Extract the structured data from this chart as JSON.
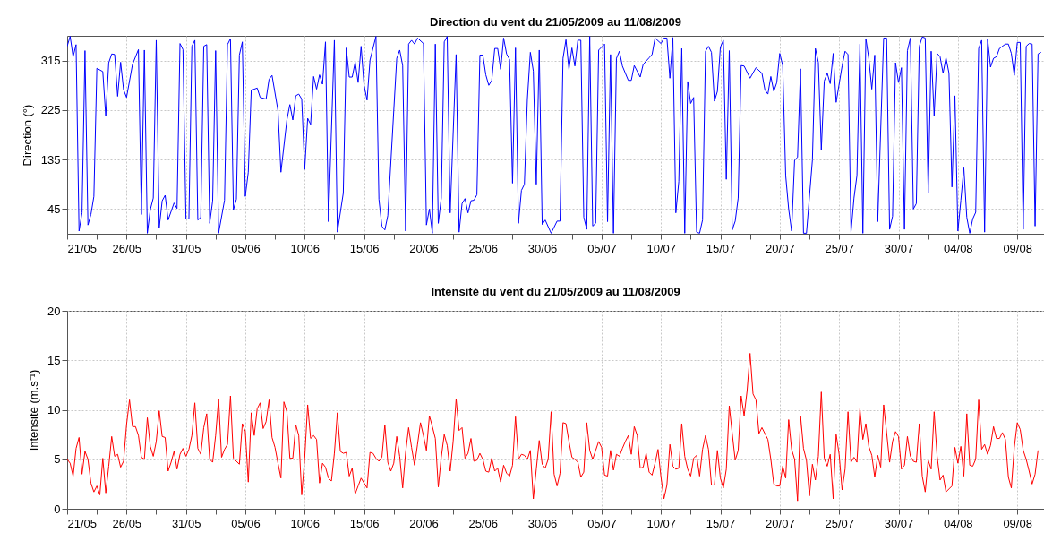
{
  "chart_data": [
    {
      "type": "line",
      "title": "Direction du vent du 21/05/2009 au 11/08/2009",
      "ylabel": "Direction (°)",
      "xlim": [
        "2009-05-21",
        "2009-08-11T06:00"
      ],
      "ylim": [
        0,
        360
      ],
      "yticks": [
        45,
        135,
        225,
        315
      ],
      "grid": true,
      "xticks": [
        {
          "value": "2009-05-21",
          "label": "21/05"
        },
        {
          "value": "2009-05-23T12:00",
          "label": null
        },
        {
          "value": "2009-05-26",
          "label": "26/05"
        },
        {
          "value": "2009-05-28T12:00",
          "label": null
        },
        {
          "value": "2009-05-31",
          "label": "31/05"
        },
        {
          "value": "2009-06-02T12:00",
          "label": null
        },
        {
          "value": "2009-06-05",
          "label": "05/06"
        },
        {
          "value": "2009-06-07T12:00",
          "label": null
        },
        {
          "value": "2009-06-10",
          "label": "10/06"
        },
        {
          "value": "2009-06-12T12:00",
          "label": null
        },
        {
          "value": "2009-06-15",
          "label": "15/06"
        },
        {
          "value": "2009-06-17T12:00",
          "label": null
        },
        {
          "value": "2009-06-20",
          "label": "20/06"
        },
        {
          "value": "2009-06-22T12:00",
          "label": null
        },
        {
          "value": "2009-06-25",
          "label": "25/06"
        },
        {
          "value": "2009-06-27T12:00",
          "label": null
        },
        {
          "value": "2009-06-30",
          "label": "30/06"
        },
        {
          "value": "2009-07-02T12:00",
          "label": null
        },
        {
          "value": "2009-07-05",
          "label": "05/07"
        },
        {
          "value": "2009-07-07T12:00",
          "label": null
        },
        {
          "value": "2009-07-10",
          "label": "10/07"
        },
        {
          "value": "2009-07-12T12:00",
          "label": null
        },
        {
          "value": "2009-07-15",
          "label": "15/07"
        },
        {
          "value": "2009-07-17T12:00",
          "label": null
        },
        {
          "value": "2009-07-20",
          "label": "20/07"
        },
        {
          "value": "2009-07-22T12:00",
          "label": null
        },
        {
          "value": "2009-07-25",
          "label": "25/07"
        },
        {
          "value": "2009-07-27T12:00",
          "label": null
        },
        {
          "value": "2009-07-30",
          "label": "30/07"
        },
        {
          "value": "2009-08-01T12:00",
          "label": null
        },
        {
          "value": "2009-08-04",
          "label": "04/08"
        },
        {
          "value": "2009-08-06T12:00",
          "label": null
        },
        {
          "value": "2009-08-09",
          "label": "09/08"
        }
      ],
      "x": [
        "2009-05-21T00:00",
        "2009-05-21T06:00",
        "2009-05-21T12:00",
        "2009-05-21T18:00",
        "2009-05-22T00:00",
        "2009-05-22T06:00",
        "2009-05-22T12:00",
        "2009-05-22T18:00",
        "2009-05-23T00:00",
        "2009-05-23T06:00",
        "2009-05-23T12:00",
        "2009-05-24T00:00",
        "2009-05-24T06:00",
        "2009-05-24T12:00",
        "2009-05-24T18:00",
        "2009-05-25T00:00",
        "2009-05-25T06:00",
        "2009-05-25T12:00",
        "2009-05-25T18:00",
        "2009-05-26T00:00",
        "2009-05-26T12:00",
        "2009-05-27T00:00",
        "2009-05-27T06:00",
        "2009-05-27T12:00",
        "2009-05-27T18:00",
        "2009-05-28T00:00",
        "2009-05-28T06:00",
        "2009-05-28T12:00",
        "2009-05-28T18:00",
        "2009-05-29T00:00",
        "2009-05-29T06:00",
        "2009-05-29T12:00",
        "2009-05-30T00:00",
        "2009-05-30T06:00",
        "2009-05-30T12:00",
        "2009-05-30T18:00",
        "2009-05-31T00:00",
        "2009-05-31T06:00",
        "2009-05-31T12:00",
        "2009-05-31T18:00",
        "2009-06-01T00:00",
        "2009-06-01T06:00",
        "2009-06-01T12:00",
        "2009-06-01T18:00",
        "2009-06-02T00:00",
        "2009-06-02T06:00",
        "2009-06-02T12:00",
        "2009-06-02T18:00",
        "2009-06-03T06:00",
        "2009-06-03T12:00",
        "2009-06-03T18:00",
        "2009-06-04T00:00",
        "2009-06-04T06:00",
        "2009-06-04T12:00",
        "2009-06-04T18:00",
        "2009-06-05T00:00",
        "2009-06-05T06:00",
        "2009-06-05T12:00",
        "2009-06-06T00:00",
        "2009-06-06T06:00",
        "2009-06-06T18:00",
        "2009-06-07T00:00",
        "2009-06-07T06:00",
        "2009-06-07T18:00",
        "2009-06-08T00:00",
        "2009-06-08T12:00",
        "2009-06-08T18:00",
        "2009-06-09T00:00",
        "2009-06-09T06:00",
        "2009-06-09T12:00",
        "2009-06-09T18:00",
        "2009-06-10T00:00",
        "2009-06-10T06:00",
        "2009-06-10T12:00",
        "2009-06-10T18:00",
        "2009-06-11T00:00",
        "2009-06-11T06:00",
        "2009-06-11T12:00",
        "2009-06-11T18:00",
        "2009-06-12T00:00",
        "2009-06-12T12:00",
        "2009-06-12T18:00",
        "2009-06-13T06:00",
        "2009-06-13T12:00",
        "2009-06-13T18:00",
        "2009-06-14T00:00",
        "2009-06-14T06:00",
        "2009-06-14T12:00",
        "2009-06-14T18:00",
        "2009-06-15T00:00",
        "2009-06-15T06:00",
        "2009-06-15T12:00",
        "2009-06-16T00:00",
        "2009-06-16T06:00",
        "2009-06-16T12:00",
        "2009-06-16T18:00",
        "2009-06-17T00:00",
        "2009-06-17T18:00",
        "2009-06-18T00:00",
        "2009-06-18T06:00",
        "2009-06-18T12:00",
        "2009-06-18T18:00",
        "2009-06-19T00:00",
        "2009-06-19T06:00",
        "2009-06-19T12:00",
        "2009-06-20T00:00",
        "2009-06-20T06:00",
        "2009-06-20T12:00",
        "2009-06-20T18:00",
        "2009-06-21T00:00",
        "2009-06-21T06:00",
        "2009-06-21T12:00",
        "2009-06-21T18:00",
        "2009-06-22T00:00",
        "2009-06-22T06:00",
        "2009-06-22T18:00",
        "2009-06-23T00:00",
        "2009-06-23T06:00",
        "2009-06-23T12:00",
        "2009-06-23T18:00",
        "2009-06-24T00:00",
        "2009-06-24T06:00",
        "2009-06-24T12:00",
        "2009-06-24T18:00",
        "2009-06-25T00:00",
        "2009-06-25T06:00",
        "2009-06-25T12:00",
        "2009-06-25T18:00",
        "2009-06-26T00:00",
        "2009-06-26T06:00",
        "2009-06-26T12:00",
        "2009-06-26T18:00",
        "2009-06-27T00:00",
        "2009-06-27T06:00",
        "2009-06-27T12:00",
        "2009-06-27T18:00",
        "2009-06-28T00:00",
        "2009-06-28T06:00",
        "2009-06-28T12:00",
        "2009-06-28T18:00",
        "2009-06-29T00:00",
        "2009-06-29T06:00",
        "2009-06-29T12:00",
        "2009-06-29T18:00",
        "2009-06-30T00:00",
        "2009-06-30T06:00",
        "2009-06-30T18:00",
        "2009-07-01T06:00",
        "2009-07-01T12:00",
        "2009-07-01T18:00",
        "2009-07-02T00:00",
        "2009-07-02T06:00",
        "2009-07-02T12:00",
        "2009-07-02T18:00",
        "2009-07-03T00:00",
        "2009-07-03T06:00",
        "2009-07-03T12:00",
        "2009-07-03T18:00",
        "2009-07-04T00:00",
        "2009-07-04T06:00",
        "2009-07-04T12:00",
        "2009-07-04T18:00",
        "2009-07-05T06:00",
        "2009-07-05T12:00",
        "2009-07-05T18:00",
        "2009-07-06T00:00",
        "2009-07-06T06:00",
        "2009-07-06T12:00",
        "2009-07-06T18:00",
        "2009-07-07T06:00",
        "2009-07-07T12:00",
        "2009-07-07T18:00",
        "2009-07-08T06:00",
        "2009-07-08T12:00",
        "2009-07-09T00:00",
        "2009-07-09T06:00",
        "2009-07-09T12:00",
        "2009-07-10T00:00",
        "2009-07-10T06:00",
        "2009-07-10T12:00",
        "2009-07-10T18:00",
        "2009-07-11T00:00",
        "2009-07-11T06:00",
        "2009-07-11T12:00",
        "2009-07-11T18:00",
        "2009-07-12T00:00",
        "2009-07-12T06:00",
        "2009-07-12T12:00",
        "2009-07-12T18:00",
        "2009-07-13T00:00",
        "2009-07-13T06:00",
        "2009-07-13T12:00",
        "2009-07-13T18:00",
        "2009-07-14T00:00",
        "2009-07-14T06:00",
        "2009-07-14T12:00",
        "2009-07-14T18:00",
        "2009-07-15T00:00",
        "2009-07-15T06:00",
        "2009-07-15T12:00",
        "2009-07-15T18:00",
        "2009-07-16T00:00",
        "2009-07-16T06:00",
        "2009-07-16T12:00",
        "2009-07-16T18:00",
        "2009-07-17T00:00",
        "2009-07-17T12:00",
        "2009-07-18T00:00",
        "2009-07-18T12:00",
        "2009-07-18T18:00",
        "2009-07-19T00:00",
        "2009-07-19T06:00",
        "2009-07-19T12:00",
        "2009-07-19T18:00",
        "2009-07-20T00:00",
        "2009-07-20T06:00",
        "2009-07-20T12:00",
        "2009-07-20T18:00",
        "2009-07-21T00:00",
        "2009-07-21T06:00",
        "2009-07-21T12:00",
        "2009-07-21T18:00",
        "2009-07-22T00:00",
        "2009-07-22T06:00",
        "2009-07-22T18:00",
        "2009-07-23T00:00",
        "2009-07-23T06:00",
        "2009-07-23T12:00",
        "2009-07-23T18:00",
        "2009-07-24T00:00",
        "2009-07-24T06:00",
        "2009-07-24T12:00",
        "2009-07-24T18:00",
        "2009-07-25T06:00",
        "2009-07-25T12:00",
        "2009-07-25T18:00",
        "2009-07-26T00:00",
        "2009-07-26T06:00",
        "2009-07-26T12:00",
        "2009-07-26T18:00",
        "2009-07-27T00:00",
        "2009-07-27T06:00",
        "2009-07-27T12:00",
        "2009-07-27T18:00",
        "2009-07-28T00:00",
        "2009-07-28T06:00",
        "2009-07-28T18:00",
        "2009-07-29T00:00",
        "2009-07-29T06:00",
        "2009-07-29T12:00",
        "2009-07-29T18:00",
        "2009-07-30T00:00",
        "2009-07-30T06:00",
        "2009-07-30T12:00",
        "2009-07-30T18:00",
        "2009-07-31T00:00",
        "2009-07-31T06:00",
        "2009-07-31T12:00",
        "2009-07-31T18:00",
        "2009-08-01T00:00",
        "2009-08-01T06:00",
        "2009-08-01T12:00",
        "2009-08-01T18:00",
        "2009-08-02T00:00",
        "2009-08-02T06:00",
        "2009-08-02T12:00",
        "2009-08-02T18:00",
        "2009-08-03T00:00",
        "2009-08-03T06:00",
        "2009-08-03T12:00",
        "2009-08-03T18:00",
        "2009-08-04T00:00",
        "2009-08-04T06:00",
        "2009-08-04T12:00",
        "2009-08-04T18:00",
        "2009-08-05T00:00",
        "2009-08-05T06:00",
        "2009-08-05T12:00",
        "2009-08-05T18:00",
        "2009-08-06T00:00",
        "2009-08-06T06:00",
        "2009-08-06T12:00",
        "2009-08-06T18:00",
        "2009-08-07T00:00",
        "2009-08-07T06:00",
        "2009-08-07T12:00",
        "2009-08-08T00:00",
        "2009-08-08T06:00",
        "2009-08-08T12:00",
        "2009-08-08T18:00",
        "2009-08-09T00:00",
        "2009-08-09T06:00",
        "2009-08-09T12:00",
        "2009-08-09T18:00",
        "2009-08-10T00:00",
        "2009-08-10T06:00",
        "2009-08-10T12:00",
        "2009-08-10T18:00",
        "2009-08-11T00:00"
      ],
      "series": [
        {
          "color": "#0000ff",
          "values": [
            341,
            359,
            322,
            344,
            5,
            38,
            333,
            16,
            35,
            68,
            301,
            295,
            214,
            311,
            327,
            326,
            250,
            312,
            262,
            248,
            308,
            335,
            35,
            334,
            1,
            44,
            65,
            352,
            11,
            60,
            70,
            25,
            56,
            46,
            346,
            335,
            27,
            27,
            341,
            352,
            25,
            30,
            341,
            344,
            19,
            60,
            333,
            1,
            61,
            344,
            355,
            44,
            63,
            325,
            349,
            68,
            112,
            261,
            265,
            248,
            245,
            281,
            288,
            224,
            112,
            207,
            235,
            207,
            251,
            254,
            245,
            117,
            210,
            199,
            286,
            263,
            289,
            272,
            349,
            22,
            352,
            3,
            74,
            338,
            285,
            285,
            312,
            275,
            341,
            270,
            243,
            316,
            359,
            63,
            14,
            7,
            33,
            319,
            334,
            306,
            5,
            345,
            352,
            345,
            356,
            346,
            16,
            45,
            1,
            345,
            19,
            65,
            349,
            359,
            38,
            326,
            3,
            55,
            64,
            38,
            60,
            61,
            71,
            325,
            325,
            289,
            270,
            279,
            337,
            337,
            299,
            356,
            327,
            317,
            92,
            338,
            19,
            79,
            90,
            245,
            330,
            296,
            90,
            334,
            17,
            25,
            1,
            23,
            23,
            319,
            353,
            299,
            338,
            305,
            352,
            352,
            30,
            8,
            359,
            14,
            19,
            334,
            345,
            22,
            326,
            1,
            319,
            332,
            305,
            279,
            279,
            306,
            285,
            308,
            320,
            326,
            356,
            346,
            356,
            356,
            283,
            357,
            38,
            95,
            337,
            1,
            277,
            237,
            248,
            3,
            1,
            25,
            332,
            341,
            330,
            241,
            259,
            339,
            352,
            99,
            333,
            7,
            23,
            65,
            306,
            305,
            283,
            302,
            292,
            262,
            254,
            286,
            259,
            275,
            328,
            306,
            106,
            45,
            5,
            134,
            139,
            300,
            1,
            1,
            134,
            337,
            312,
            153,
            278,
            292,
            273,
            328,
            239,
            305,
            332,
            326,
            3,
            65,
            106,
            345,
            1,
            355,
            319,
            263,
            325,
            22,
            356,
            356,
            8,
            32,
            311,
            275,
            302,
            8,
            333,
            356,
            45,
            55,
            341,
            358,
            356,
            74,
            332,
            215,
            328,
            322,
            292,
            320,
            292,
            85,
            251,
            5,
            61,
            120,
            30,
            1,
            27,
            39,
            337,
            352,
            3,
            355,
            303,
            319,
            322,
            337,
            345,
            345,
            328,
            288,
            348,
            348,
            8,
            341,
            346,
            345,
            14,
            327,
            330
          ]
        }
      ]
    },
    {
      "type": "line",
      "title": "Intensité du vent du 21/05/2009 au 11/08/2009",
      "ylabel": "Intensité (m.s⁻¹)",
      "xlim": [
        "2009-05-21",
        "2009-08-11T06:00"
      ],
      "ylim": [
        0,
        20
      ],
      "yticks": [
        0,
        5,
        10,
        15,
        20
      ],
      "grid": true,
      "xticks": [
        {
          "value": "2009-05-21",
          "label": "21/05"
        },
        {
          "value": "2009-05-23T12:00",
          "label": null
        },
        {
          "value": "2009-05-26",
          "label": "26/05"
        },
        {
          "value": "2009-05-28T12:00",
          "label": null
        },
        {
          "value": "2009-05-31",
          "label": "31/05"
        },
        {
          "value": "2009-06-02T12:00",
          "label": null
        },
        {
          "value": "2009-06-05",
          "label": "05/06"
        },
        {
          "value": "2009-06-07T12:00",
          "label": null
        },
        {
          "value": "2009-06-10",
          "label": "10/06"
        },
        {
          "value": "2009-06-12T12:00",
          "label": null
        },
        {
          "value": "2009-06-15",
          "label": "15/06"
        },
        {
          "value": "2009-06-17T12:00",
          "label": null
        },
        {
          "value": "2009-06-20",
          "label": "20/06"
        },
        {
          "value": "2009-06-22T12:00",
          "label": null
        },
        {
          "value": "2009-06-25",
          "label": "25/06"
        },
        {
          "value": "2009-06-27T12:00",
          "label": null
        },
        {
          "value": "2009-06-30",
          "label": "30/06"
        },
        {
          "value": "2009-07-02T12:00",
          "label": null
        },
        {
          "value": "2009-07-05",
          "label": "05/07"
        },
        {
          "value": "2009-07-07T12:00",
          "label": null
        },
        {
          "value": "2009-07-10",
          "label": "10/07"
        },
        {
          "value": "2009-07-12T12:00",
          "label": null
        },
        {
          "value": "2009-07-15",
          "label": "15/07"
        },
        {
          "value": "2009-07-17T12:00",
          "label": null
        },
        {
          "value": "2009-07-20",
          "label": "20/07"
        },
        {
          "value": "2009-07-22T12:00",
          "label": null
        },
        {
          "value": "2009-07-25",
          "label": "25/07"
        },
        {
          "value": "2009-07-27T12:00",
          "label": null
        },
        {
          "value": "2009-07-30",
          "label": "30/07"
        },
        {
          "value": "2009-08-01T12:00",
          "label": null
        },
        {
          "value": "2009-08-04",
          "label": "04/08"
        },
        {
          "value": "2009-08-06T12:00",
          "label": null
        },
        {
          "value": "2009-08-09",
          "label": "09/08"
        }
      ],
      "x": [
        "2009-05-21T00:00",
        "2009-05-21T06:00",
        "2009-05-21T12:00",
        "2009-05-21T18:00",
        "2009-05-22T00:00",
        "2009-05-22T06:00",
        "2009-05-22T12:00",
        "2009-05-22T18:00",
        "2009-05-23T00:00",
        "2009-05-23T06:00",
        "2009-05-23T12:00",
        "2009-05-23T18:00",
        "2009-05-24T00:00",
        "2009-05-24T06:00",
        "2009-05-24T12:00",
        "2009-05-24T18:00",
        "2009-05-25T00:00",
        "2009-05-25T06:00",
        "2009-05-25T12:00",
        "2009-05-25T18:00",
        "2009-05-26T00:00",
        "2009-05-26T06:00",
        "2009-05-26T12:00",
        "2009-05-26T18:00",
        "2009-05-27T00:00",
        "2009-05-27T06:00",
        "2009-05-27T12:00",
        "2009-05-27T18:00",
        "2009-05-28T00:00",
        "2009-05-28T06:00",
        "2009-05-28T12:00",
        "2009-05-28T18:00",
        "2009-05-29T00:00",
        "2009-05-29T06:00",
        "2009-05-29T12:00",
        "2009-05-29T18:00",
        "2009-05-30T00:00",
        "2009-05-30T06:00",
        "2009-05-30T12:00",
        "2009-05-30T18:00",
        "2009-05-31T00:00",
        "2009-05-31T06:00",
        "2009-05-31T12:00",
        "2009-05-31T18:00",
        "2009-06-01T00:00",
        "2009-06-01T06:00",
        "2009-06-01T12:00",
        "2009-06-01T18:00",
        "2009-06-02T00:00",
        "2009-06-02T06:00",
        "2009-06-02T12:00",
        "2009-06-02T18:00",
        "2009-06-03T00:00",
        "2009-06-03T06:00",
        "2009-06-03T12:00",
        "2009-06-03T18:00",
        "2009-06-04T00:00",
        "2009-06-04T06:00",
        "2009-06-04T12:00",
        "2009-06-04T18:00",
        "2009-06-05T00:00",
        "2009-06-05T06:00",
        "2009-06-05T12:00",
        "2009-06-05T18:00",
        "2009-06-06T00:00",
        "2009-06-06T06:00",
        "2009-06-06T12:00",
        "2009-06-06T18:00",
        "2009-06-07T00:00",
        "2009-06-07T06:00",
        "2009-06-07T12:00",
        "2009-06-07T18:00",
        "2009-06-08T00:00",
        "2009-06-08T06:00",
        "2009-06-08T12:00",
        "2009-06-08T18:00",
        "2009-06-09T00:00",
        "2009-06-09T06:00",
        "2009-06-09T12:00",
        "2009-06-09T18:00",
        "2009-06-10T00:00",
        "2009-06-10T06:00",
        "2009-06-10T12:00",
        "2009-06-10T18:00",
        "2009-06-11T00:00",
        "2009-06-11T06:00",
        "2009-06-11T12:00",
        "2009-06-11T18:00",
        "2009-06-12T00:00",
        "2009-06-12T06:00",
        "2009-06-12T12:00",
        "2009-06-12T18:00",
        "2009-06-13T00:00",
        "2009-06-13T06:00",
        "2009-06-13T12:00",
        "2009-06-13T18:00",
        "2009-06-14T00:00",
        "2009-06-14T06:00",
        "2009-06-14T12:00",
        "2009-06-14T18:00",
        "2009-06-15T00:00",
        "2009-06-15T06:00",
        "2009-06-15T12:00",
        "2009-06-15T18:00",
        "2009-06-16T00:00",
        "2009-06-16T06:00",
        "2009-06-16T12:00",
        "2009-06-16T18:00",
        "2009-06-17T00:00",
        "2009-06-17T06:00",
        "2009-06-17T12:00",
        "2009-06-17T18:00",
        "2009-06-18T00:00",
        "2009-06-18T06:00",
        "2009-06-18T12:00",
        "2009-06-18T18:00",
        "2009-06-19T00:00",
        "2009-06-19T06:00",
        "2009-06-19T12:00",
        "2009-06-19T18:00",
        "2009-06-20T00:00",
        "2009-06-20T06:00",
        "2009-06-20T12:00",
        "2009-06-20T18:00",
        "2009-06-21T00:00",
        "2009-06-21T06:00",
        "2009-06-21T12:00",
        "2009-06-21T18:00",
        "2009-06-22T00:00",
        "2009-06-22T06:00",
        "2009-06-22T12:00",
        "2009-06-22T18:00",
        "2009-06-23T00:00",
        "2009-06-23T06:00",
        "2009-06-23T12:00",
        "2009-06-23T18:00",
        "2009-06-24T00:00",
        "2009-06-24T06:00",
        "2009-06-24T12:00",
        "2009-06-24T18:00",
        "2009-06-25T00:00",
        "2009-06-25T06:00",
        "2009-06-25T12:00",
        "2009-06-25T18:00",
        "2009-06-26T00:00",
        "2009-06-26T06:00",
        "2009-06-26T12:00",
        "2009-06-26T18:00",
        "2009-06-27T00:00",
        "2009-06-27T06:00",
        "2009-06-27T12:00",
        "2009-06-27T18:00",
        "2009-06-28T00:00",
        "2009-06-28T06:00",
        "2009-06-28T12:00",
        "2009-06-28T18:00",
        "2009-06-29T00:00",
        "2009-06-29T06:00",
        "2009-06-29T12:00",
        "2009-06-29T18:00",
        "2009-06-30T00:00",
        "2009-06-30T06:00",
        "2009-06-30T12:00",
        "2009-06-30T18:00",
        "2009-07-01T00:00",
        "2009-07-01T06:00",
        "2009-07-01T12:00",
        "2009-07-01T18:00",
        "2009-07-02T00:00",
        "2009-07-02T06:00",
        "2009-07-02T12:00",
        "2009-07-02T18:00",
        "2009-07-03T00:00",
        "2009-07-03T06:00",
        "2009-07-03T12:00",
        "2009-07-03T18:00",
        "2009-07-04T00:00",
        "2009-07-04T06:00",
        "2009-07-04T12:00",
        "2009-07-04T18:00",
        "2009-07-05T00:00",
        "2009-07-05T06:00",
        "2009-07-05T12:00",
        "2009-07-05T18:00",
        "2009-07-06T00:00",
        "2009-07-06T06:00",
        "2009-07-06T12:00",
        "2009-07-06T18:00",
        "2009-07-07T00:00",
        "2009-07-07T06:00",
        "2009-07-07T12:00",
        "2009-07-07T18:00",
        "2009-07-08T00:00",
        "2009-07-08T06:00",
        "2009-07-08T12:00",
        "2009-07-08T18:00",
        "2009-07-09T00:00",
        "2009-07-09T06:00",
        "2009-07-09T12:00",
        "2009-07-09T18:00",
        "2009-07-10T00:00",
        "2009-07-10T06:00",
        "2009-07-10T12:00",
        "2009-07-10T18:00",
        "2009-07-11T00:00",
        "2009-07-11T06:00",
        "2009-07-11T12:00",
        "2009-07-11T18:00",
        "2009-07-12T00:00",
        "2009-07-12T06:00",
        "2009-07-12T12:00",
        "2009-07-12T18:00",
        "2009-07-13T00:00",
        "2009-07-13T06:00",
        "2009-07-13T12:00",
        "2009-07-13T18:00",
        "2009-07-14T00:00",
        "2009-07-14T06:00",
        "2009-07-14T12:00",
        "2009-07-14T18:00",
        "2009-07-15T00:00",
        "2009-07-15T06:00",
        "2009-07-15T12:00",
        "2009-07-15T18:00",
        "2009-07-16T00:00",
        "2009-07-16T06:00",
        "2009-07-16T12:00",
        "2009-07-16T18:00",
        "2009-07-17T00:00",
        "2009-07-17T06:00",
        "2009-07-17T12:00",
        "2009-07-17T18:00",
        "2009-07-18T00:00",
        "2009-07-18T06:00",
        "2009-07-18T12:00",
        "2009-07-18T18:00",
        "2009-07-19T00:00",
        "2009-07-19T06:00",
        "2009-07-19T12:00",
        "2009-07-19T18:00",
        "2009-07-20T00:00",
        "2009-07-20T06:00",
        "2009-07-20T12:00",
        "2009-07-20T18:00",
        "2009-07-21T00:00",
        "2009-07-21T06:00",
        "2009-07-21T12:00",
        "2009-07-21T18:00",
        "2009-07-22T00:00",
        "2009-07-22T06:00",
        "2009-07-22T12:00",
        "2009-07-22T18:00",
        "2009-07-23T00:00",
        "2009-07-23T06:00",
        "2009-07-23T12:00",
        "2009-07-23T18:00",
        "2009-07-24T00:00",
        "2009-07-24T06:00",
        "2009-07-24T12:00",
        "2009-07-24T18:00",
        "2009-07-25T00:00",
        "2009-07-25T06:00",
        "2009-07-25T12:00",
        "2009-07-25T18:00",
        "2009-07-26T00:00",
        "2009-07-26T06:00",
        "2009-07-26T12:00",
        "2009-07-26T18:00",
        "2009-07-27T00:00",
        "2009-07-27T06:00",
        "2009-07-27T12:00",
        "2009-07-27T18:00",
        "2009-07-28T00:00",
        "2009-07-28T06:00",
        "2009-07-28T12:00",
        "2009-07-28T18:00",
        "2009-07-29T00:00",
        "2009-07-29T06:00",
        "2009-07-29T12:00",
        "2009-07-29T18:00",
        "2009-07-30T00:00",
        "2009-07-30T06:00",
        "2009-07-30T12:00",
        "2009-07-30T18:00",
        "2009-07-31T00:00",
        "2009-07-31T06:00",
        "2009-07-31T12:00",
        "2009-07-31T18:00",
        "2009-08-01T00:00",
        "2009-08-01T06:00",
        "2009-08-01T12:00",
        "2009-08-01T18:00",
        "2009-08-02T00:00",
        "2009-08-02T06:00",
        "2009-08-02T12:00",
        "2009-08-02T18:00",
        "2009-08-03T00:00",
        "2009-08-03T06:00",
        "2009-08-03T12:00",
        "2009-08-03T18:00",
        "2009-08-04T00:00",
        "2009-08-04T06:00",
        "2009-08-04T12:00",
        "2009-08-04T18:00",
        "2009-08-05T00:00",
        "2009-08-05T06:00",
        "2009-08-05T12:00",
        "2009-08-05T18:00",
        "2009-08-06T00:00",
        "2009-08-06T06:00",
        "2009-08-06T12:00",
        "2009-08-06T18:00",
        "2009-08-07T00:00",
        "2009-08-07T06:00",
        "2009-08-07T12:00",
        "2009-08-07T18:00",
        "2009-08-08T00:00",
        "2009-08-08T06:00",
        "2009-08-08T12:00",
        "2009-08-08T18:00",
        "2009-08-09T00:00",
        "2009-08-09T06:00",
        "2009-08-09T12:00",
        "2009-08-09T18:00",
        "2009-08-10T00:00",
        "2009-08-10T06:00",
        "2009-08-10T12:00",
        "2009-08-10T18:00"
      ],
      "series": [
        {
          "color": "#ff0000",
          "values": [
            5.0,
            4.6,
            3.3,
            6.1,
            7.2,
            3.5,
            5.8,
            5.0,
            2.6,
            1.7,
            2.3,
            1.4,
            5.1,
            1.6,
            4.3,
            7.3,
            5.3,
            5.5,
            4.2,
            4.8,
            8.5,
            11.0,
            8.3,
            8.3,
            7.4,
            5.2,
            5.0,
            9.2,
            6.3,
            5.3,
            6.8,
            9.9,
            7.3,
            7.2,
            3.8,
            4.7,
            5.8,
            4.0,
            5.5,
            6.1,
            5.3,
            6.0,
            7.4,
            10.7,
            6.1,
            5.5,
            8.2,
            9.6,
            5.0,
            4.7,
            7.4,
            11.1,
            5.2,
            6.0,
            6.5,
            11.4,
            5.1,
            4.8,
            4.5,
            8.6,
            7.8,
            2.7,
            9.7,
            7.4,
            10.1,
            10.7,
            8.1,
            8.8,
            11.0,
            7.2,
            6.2,
            4.6,
            3.1,
            10.8,
            9.8,
            5.1,
            5.1,
            8.5,
            7.4,
            1.4,
            5.1,
            10.5,
            7.1,
            7.4,
            7.0,
            2.6,
            4.6,
            4.2,
            3.1,
            2.8,
            5.6,
            9.7,
            5.8,
            5.6,
            5.7,
            3.3,
            4.1,
            1.5,
            2.3,
            3.1,
            2.6,
            2.1,
            5.7,
            5.6,
            5.1,
            4.8,
            5.2,
            8.5,
            4.7,
            3.8,
            4.6,
            7.3,
            5.3,
            2.1,
            5.7,
            8.2,
            6.2,
            4.4,
            6.5,
            8.7,
            7.4,
            5.9,
            9.4,
            8.3,
            7.1,
            2.2,
            5.2,
            7.5,
            6.4,
            3.8,
            6.8,
            11.1,
            7.9,
            8.2,
            5.1,
            5.6,
            7.1,
            4.8,
            4.9,
            5.6,
            5.0,
            3.8,
            3.7,
            5.1,
            3.8,
            4.1,
            2.7,
            4.4,
            3.6,
            3.3,
            4.4,
            9.3,
            5.0,
            5.5,
            5.4,
            5.0,
            5.9,
            1.0,
            4.0,
            6.9,
            4.5,
            4.1,
            5.0,
            9.8,
            3.5,
            2.3,
            3.6,
            8.7,
            8.6,
            6.8,
            5.2,
            5.0,
            4.7,
            3.2,
            3.7,
            8.7,
            5.9,
            5.0,
            5.9,
            6.8,
            6.2,
            3.4,
            3.3,
            5.9,
            3.9,
            5.5,
            5.3,
            6.1,
            6.8,
            7.4,
            5.5,
            8.3,
            7.4,
            4.1,
            4.2,
            5.6,
            3.7,
            3.4,
            4.6,
            6.0,
            3.2,
            1.0,
            2.4,
            6.5,
            4.3,
            4.0,
            4.1,
            8.6,
            5.3,
            4.0,
            3.3,
            5.1,
            5.4,
            3.3,
            6.0,
            7.4,
            6.0,
            2.4,
            2.4,
            5.9,
            3.1,
            2.1,
            4.0,
            10.4,
            7.6,
            4.9,
            5.9,
            11.4,
            9.4,
            11.9,
            15.7,
            11.6,
            11.0,
            7.6,
            8.2,
            7.6,
            7.0,
            5.0,
            2.5,
            2.3,
            2.3,
            4.3,
            3.1,
            9.0,
            6.0,
            5.0,
            0.8,
            9.4,
            6.1,
            4.9,
            1.3,
            4.5,
            2.9,
            5.3,
            11.8,
            5.1,
            4.3,
            5.5,
            1.0,
            7.5,
            5.5,
            1.9,
            4.0,
            9.8,
            4.7,
            5.2,
            4.7,
            10.1,
            7.0,
            8.6,
            6.3,
            5.4,
            3.2,
            5.4,
            4.2,
            10.5,
            7.7,
            4.7,
            6.8,
            7.8,
            7.3,
            4.0,
            4.4,
            7.3,
            5.3,
            4.8,
            4.7,
            8.6,
            3.3,
            1.7,
            4.9,
            4.0,
            9.8,
            5.3,
            2.9,
            3.4,
            1.7,
            2.0,
            2.3,
            6.2,
            4.6,
            6.3,
            3.3,
            9.6,
            4.4,
            4.3,
            5.0,
            11.0,
            6.0,
            6.5,
            5.5,
            6.4,
            8.3,
            7.1,
            7.1,
            7.7,
            7.0,
            3.2,
            2.1,
            6.2,
            8.7,
            8.0,
            5.9,
            5.0,
            3.8,
            2.5,
            3.5,
            5.9
          ]
        }
      ]
    }
  ]
}
